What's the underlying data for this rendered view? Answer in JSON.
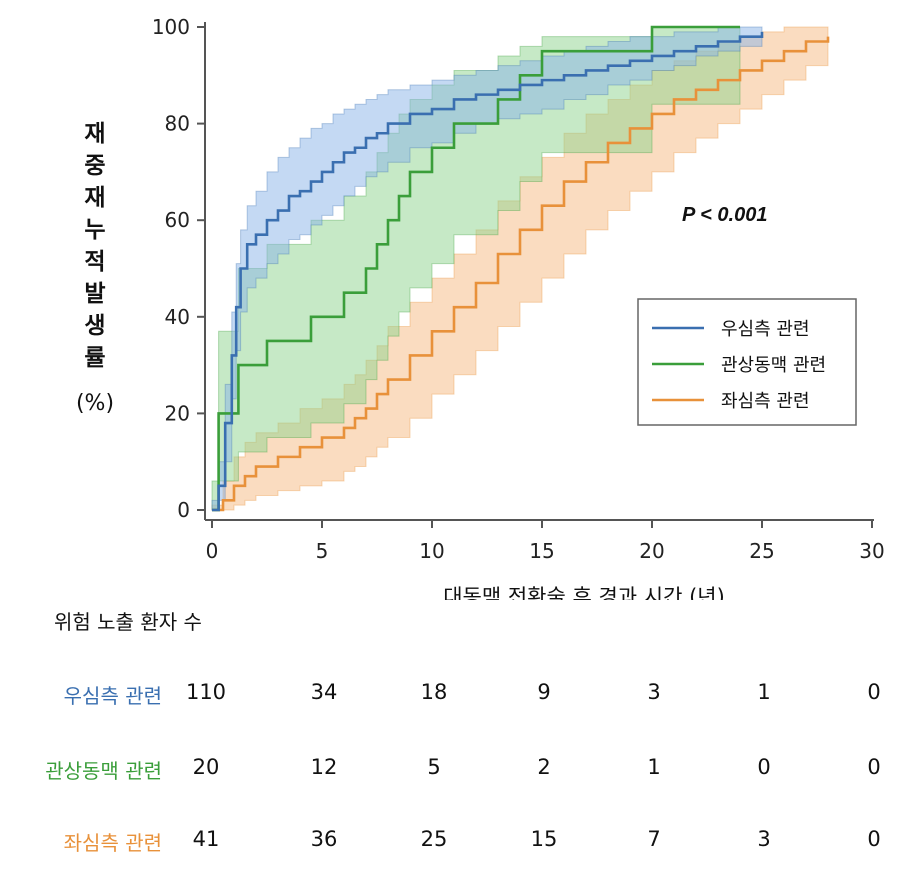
{
  "chart_data": {
    "type": "line",
    "title": "",
    "xlabel": "대동맥 전환술 후 경과 시간 (년)",
    "ylabel": "재중재누적발생률",
    "ylabel_unit": "(%)",
    "xlim": [
      0,
      30
    ],
    "ylim": [
      0,
      100
    ],
    "xticks": [
      0,
      5,
      10,
      15,
      20,
      25,
      30
    ],
    "yticks": [
      0,
      20,
      40,
      60,
      80,
      100
    ],
    "grid": false,
    "legend_position": "right-middle",
    "annotation": "P < 0.001",
    "series": [
      {
        "name": "우심측 관련",
        "color": "#3a6fb0",
        "band_color": "#8ab4e8",
        "x": [
          0,
          0.3,
          0.6,
          0.9,
          1.1,
          1.3,
          1.6,
          2,
          2.5,
          3,
          3.5,
          4,
          4.5,
          5,
          5.5,
          6,
          6.5,
          7,
          7.5,
          8,
          9,
          10,
          11,
          12,
          13,
          14,
          15,
          16,
          17,
          18,
          19,
          20,
          21,
          22,
          23,
          24,
          25
        ],
        "y": [
          0,
          5,
          18,
          32,
          42,
          50,
          55,
          57,
          60,
          62,
          65,
          66,
          68,
          70,
          72,
          74,
          75,
          77,
          78,
          80,
          82,
          83,
          85,
          86,
          87,
          88,
          89,
          90,
          91,
          92,
          93,
          94,
          95,
          96,
          97,
          98,
          99
        ],
        "lower": [
          0,
          2,
          10,
          23,
          33,
          41,
          46,
          48,
          51,
          53,
          56,
          57,
          59,
          61,
          63,
          65,
          67,
          69,
          70,
          72,
          75,
          76,
          78,
          80,
          81,
          82,
          83,
          85,
          86,
          88,
          89,
          91,
          92,
          94,
          95,
          96,
          97
        ],
        "upper": [
          2,
          10,
          26,
          41,
          51,
          58,
          63,
          66,
          70,
          73,
          75,
          77,
          79,
          80,
          82,
          83,
          84,
          85,
          86,
          87,
          88,
          89,
          90,
          91,
          92,
          93,
          94,
          95,
          96,
          97,
          98,
          98,
          99,
          99,
          100,
          100,
          100
        ]
      },
      {
        "name": "관상동맥 관련",
        "color": "#3a9e3a",
        "band_color": "#8ed48e",
        "x": [
          0,
          0.3,
          1.2,
          2.5,
          4.5,
          6,
          7,
          7.5,
          8,
          8.5,
          9,
          10,
          11,
          12,
          13,
          14,
          15,
          20,
          24
        ],
        "y": [
          0,
          20,
          30,
          35,
          40,
          45,
          50,
          55,
          60,
          65,
          70,
          75,
          80,
          80,
          85,
          90,
          95,
          100,
          100
        ],
        "lower": [
          0,
          6,
          12,
          15,
          18,
          22,
          27,
          31,
          36,
          41,
          46,
          51,
          57,
          57,
          62,
          68,
          74,
          84,
          84
        ],
        "upper": [
          6,
          37,
          50,
          55,
          60,
          65,
          70,
          74,
          78,
          82,
          85,
          88,
          91,
          91,
          94,
          96,
          98,
          100,
          100
        ]
      },
      {
        "name": "좌심측 관련",
        "color": "#e8913a",
        "band_color": "#f5b982",
        "x": [
          0,
          0.5,
          1,
          1.5,
          2,
          3,
          4,
          5,
          6,
          6.5,
          7,
          7.5,
          8,
          9,
          10,
          11,
          12,
          13,
          14,
          15,
          16,
          17,
          18,
          19,
          20,
          21,
          22,
          23,
          24,
          25,
          26,
          27,
          28
        ],
        "y": [
          0,
          2,
          5,
          7,
          9,
          11,
          13,
          15,
          17,
          19,
          21,
          24,
          27,
          32,
          37,
          42,
          47,
          53,
          58,
          63,
          68,
          72,
          76,
          79,
          82,
          85,
          87,
          89,
          91,
          93,
          95,
          97,
          98
        ],
        "lower": [
          0,
          0,
          1,
          2,
          3,
          4,
          5,
          6,
          8,
          9,
          11,
          13,
          15,
          19,
          24,
          28,
          33,
          38,
          43,
          48,
          53,
          58,
          62,
          66,
          70,
          74,
          77,
          80,
          83,
          86,
          89,
          92,
          93
        ],
        "upper": [
          1,
          6,
          11,
          14,
          16,
          18,
          21,
          23,
          26,
          28,
          31,
          34,
          38,
          43,
          48,
          53,
          58,
          64,
          69,
          73,
          78,
          82,
          85,
          88,
          91,
          93,
          95,
          97,
          98,
          99,
          100,
          100,
          100
        ]
      }
    ]
  },
  "risk_table": {
    "title": "위험 노출 환자 수",
    "time_points": [
      0,
      5,
      10,
      15,
      20,
      25,
      30
    ],
    "rows": [
      {
        "label": "우심측 관련",
        "color": "#3a6fb0",
        "values": [
          "110",
          "34",
          "18",
          "9",
          "3",
          "1",
          "0"
        ]
      },
      {
        "label": "관상동맥 관련",
        "color": "#3a9e3a",
        "values": [
          "20",
          "12",
          "5",
          "2",
          "1",
          "0",
          "0"
        ]
      },
      {
        "label": "좌심측 관련",
        "color": "#e8913a",
        "values": [
          "41",
          "36",
          "25",
          "15",
          "7",
          "3",
          "0"
        ]
      }
    ]
  }
}
